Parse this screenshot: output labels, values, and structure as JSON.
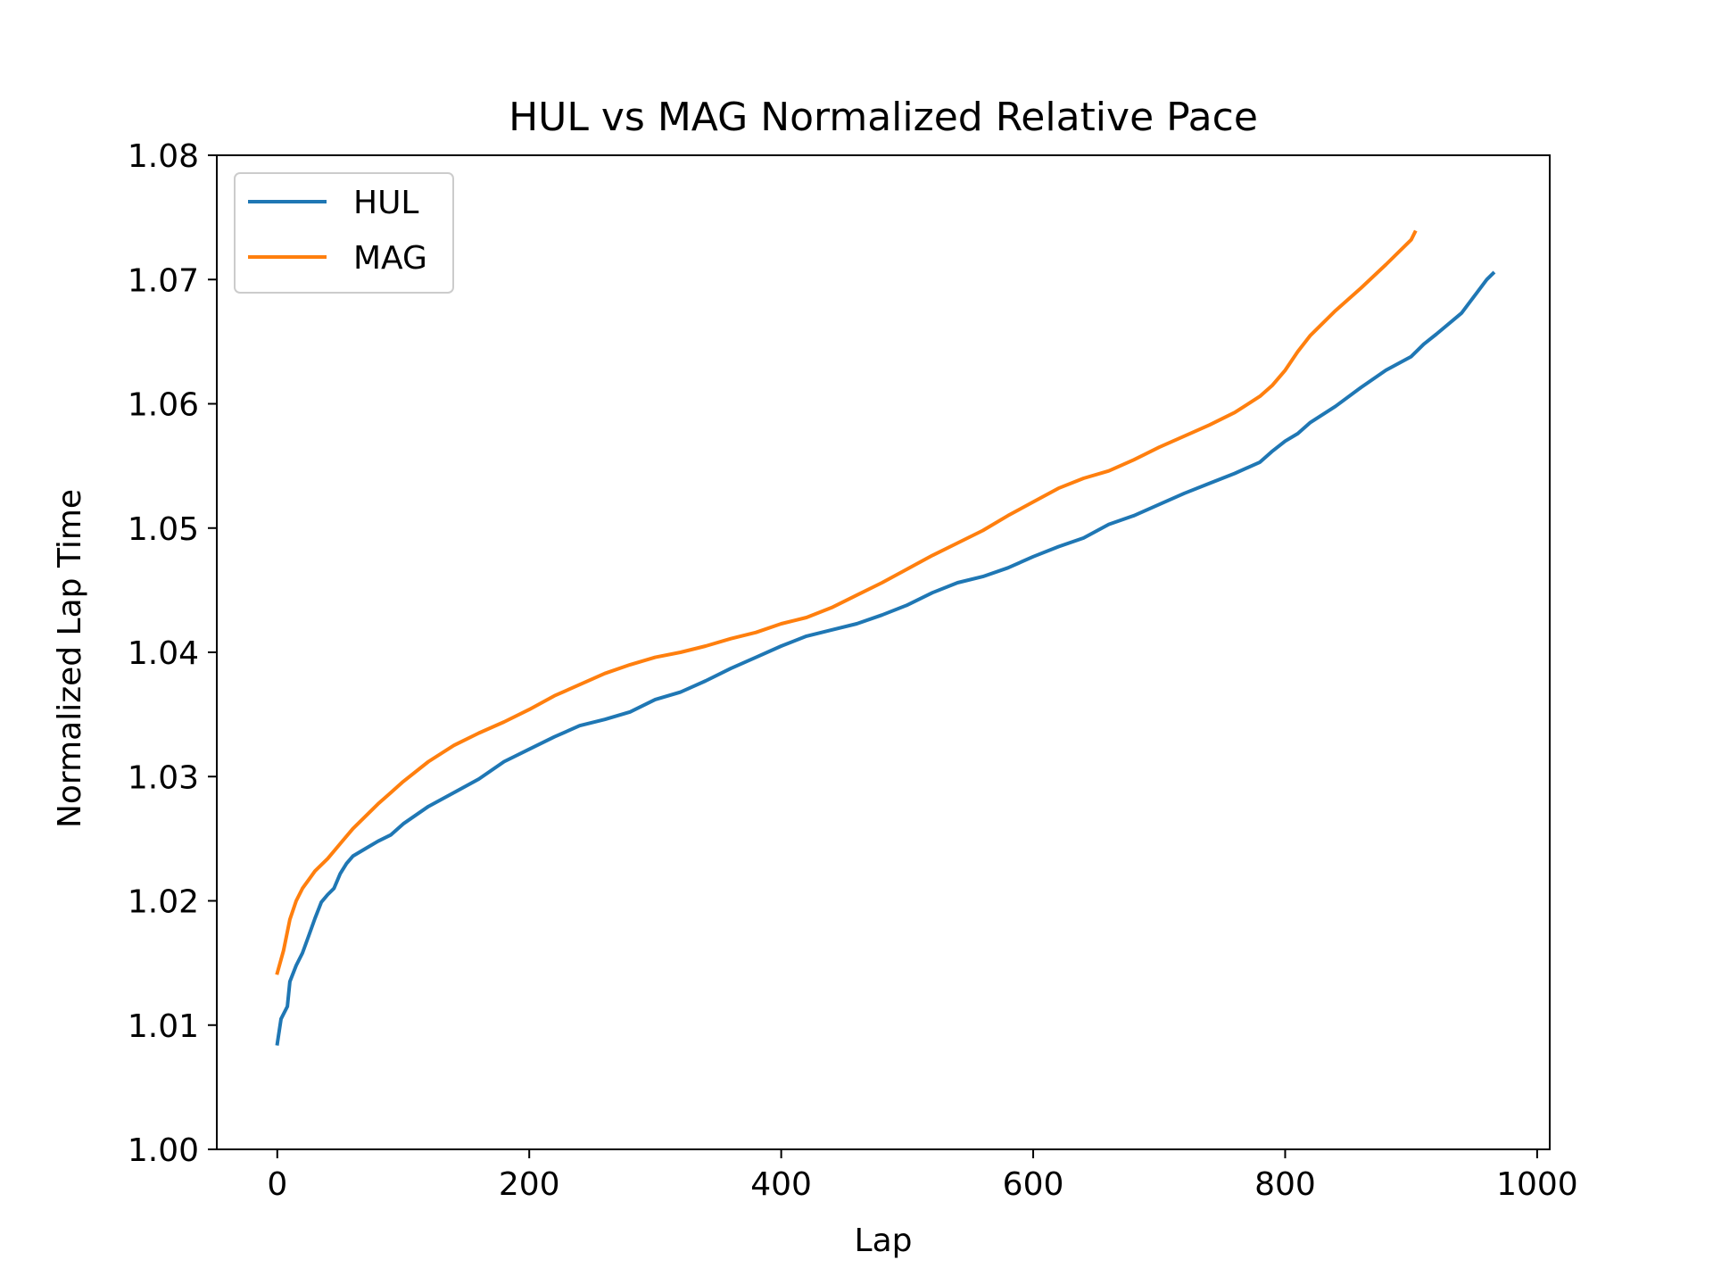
{
  "chart_data": {
    "type": "line",
    "title": "HUL vs MAG Normalized Relative Pace",
    "xlabel": "Lap",
    "ylabel": "Normalized Lap Time",
    "xlim": [
      -48,
      1010
    ],
    "ylim": [
      1.0,
      1.08
    ],
    "xticks": [
      0,
      200,
      400,
      600,
      800,
      1000
    ],
    "xtick_labels": [
      "0",
      "200",
      "400",
      "600",
      "800",
      "1000"
    ],
    "yticks": [
      1.0,
      1.01,
      1.02,
      1.03,
      1.04,
      1.05,
      1.06,
      1.07,
      1.08
    ],
    "ytick_labels": [
      "1.00",
      "1.01",
      "1.02",
      "1.03",
      "1.04",
      "1.05",
      "1.06",
      "1.07",
      "1.08"
    ],
    "grid": false,
    "legend_position": "upper-left",
    "series": [
      {
        "name": "HUL",
        "color": "#1f77b4",
        "x": [
          0,
          3,
          8,
          10,
          15,
          20,
          25,
          30,
          35,
          40,
          45,
          50,
          55,
          60,
          70,
          80,
          90,
          100,
          120,
          140,
          160,
          180,
          200,
          220,
          240,
          260,
          280,
          300,
          320,
          340,
          360,
          380,
          400,
          420,
          440,
          460,
          480,
          500,
          520,
          540,
          560,
          580,
          600,
          620,
          640,
          660,
          680,
          700,
          720,
          740,
          760,
          780,
          790,
          800,
          810,
          820,
          840,
          860,
          880,
          900,
          910,
          920,
          940,
          960,
          965
        ],
        "y": [
          1.0085,
          1.0105,
          1.0115,
          1.0135,
          1.0148,
          1.0158,
          1.0172,
          1.0186,
          1.0199,
          1.0205,
          1.021,
          1.0222,
          1.023,
          1.0236,
          1.0242,
          1.0248,
          1.0253,
          1.0262,
          1.0276,
          1.0287,
          1.0298,
          1.0312,
          1.0322,
          1.0332,
          1.0341,
          1.0346,
          1.0352,
          1.0362,
          1.0368,
          1.0377,
          1.0387,
          1.0396,
          1.0405,
          1.0413,
          1.0418,
          1.0423,
          1.043,
          1.0438,
          1.0448,
          1.0456,
          1.0461,
          1.0468,
          1.0477,
          1.0485,
          1.0492,
          1.0503,
          1.051,
          1.0519,
          1.0528,
          1.0536,
          1.0544,
          1.0553,
          1.0562,
          1.057,
          1.0576,
          1.0585,
          1.0598,
          1.0613,
          1.0627,
          1.0638,
          1.0648,
          1.0656,
          1.0673,
          1.07,
          1.0705
        ]
      },
      {
        "name": "MAG",
        "color": "#ff7f0e",
        "x": [
          0,
          5,
          10,
          15,
          20,
          25,
          30,
          40,
          50,
          60,
          70,
          80,
          90,
          100,
          120,
          140,
          160,
          180,
          200,
          220,
          240,
          260,
          280,
          300,
          320,
          340,
          360,
          380,
          400,
          420,
          440,
          460,
          480,
          500,
          520,
          540,
          560,
          580,
          600,
          620,
          640,
          660,
          680,
          700,
          720,
          740,
          760,
          780,
          790,
          800,
          810,
          820,
          840,
          860,
          880,
          900,
          903
        ],
        "y": [
          1.0142,
          1.016,
          1.0185,
          1.02,
          1.021,
          1.0217,
          1.0224,
          1.0234,
          1.0246,
          1.0258,
          1.0268,
          1.0278,
          1.0287,
          1.0296,
          1.0312,
          1.0325,
          1.0335,
          1.0344,
          1.0354,
          1.0365,
          1.0374,
          1.0383,
          1.039,
          1.0396,
          1.04,
          1.0405,
          1.0411,
          1.0416,
          1.0423,
          1.0428,
          1.0436,
          1.0446,
          1.0456,
          1.0467,
          1.0478,
          1.0488,
          1.0498,
          1.051,
          1.0521,
          1.0532,
          1.054,
          1.0546,
          1.0555,
          1.0565,
          1.0574,
          1.0583,
          1.0593,
          1.0606,
          1.0615,
          1.0627,
          1.0642,
          1.0655,
          1.0675,
          1.0693,
          1.0712,
          1.0732,
          1.0738
        ]
      }
    ]
  }
}
